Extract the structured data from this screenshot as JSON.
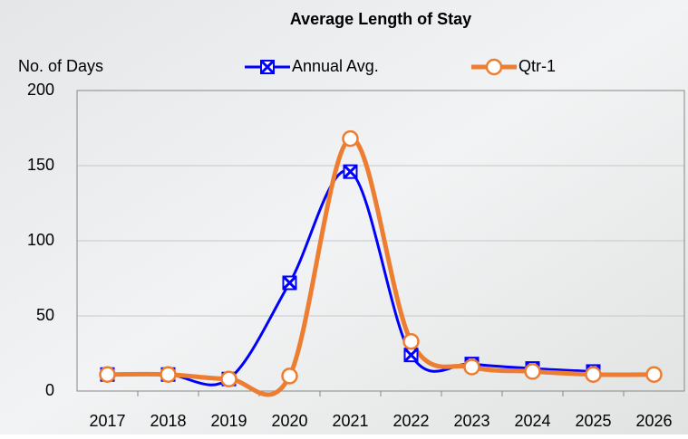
{
  "chart_data": {
    "type": "line",
    "title": "Average Length of Stay",
    "y_label": "No. of Days",
    "categories": [
      "2017",
      "2018",
      "2019",
      "2020",
      "2021",
      "2022",
      "2023",
      "2024",
      "2025",
      "2026"
    ],
    "series": [
      {
        "name": "Annual Avg.",
        "color": "#0000ff",
        "values": [
          11,
          11,
          8,
          72,
          146,
          24,
          18,
          15,
          13,
          null
        ]
      },
      {
        "name": "Qtr-1",
        "color": "#ed7d31",
        "values": [
          11,
          11,
          8,
          10,
          168,
          33,
          16,
          13,
          11,
          11
        ]
      }
    ],
    "ylim": [
      0,
      200
    ],
    "yticks": [
      0,
      50,
      100,
      150,
      200
    ],
    "grid": true
  }
}
